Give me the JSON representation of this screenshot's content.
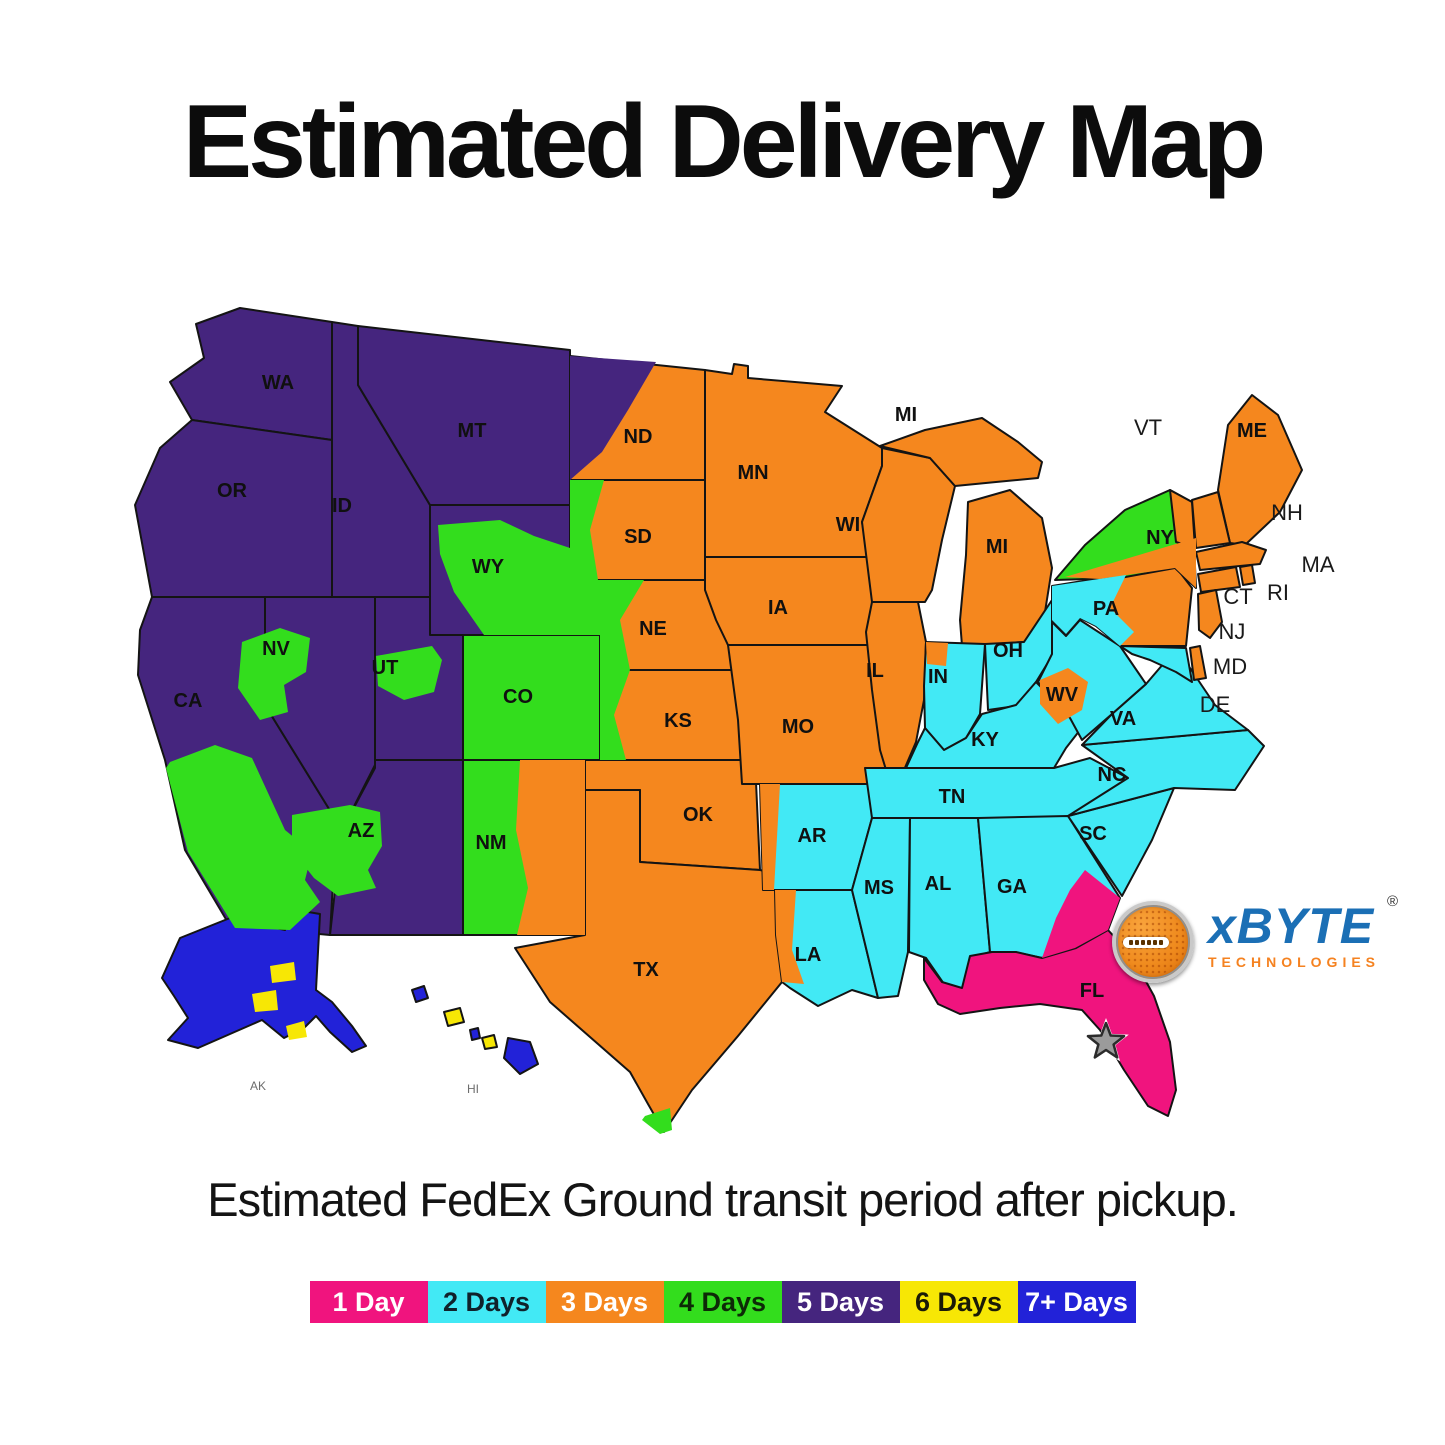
{
  "page": {
    "title": "Estimated Delivery Map",
    "subtitle": "Estimated FedEx Ground transit period after pickup."
  },
  "zones": {
    "1day": {
      "label": "1 Day",
      "color": "#F0147E",
      "text": "#FFFFFF"
    },
    "2day": {
      "label": "2 Days",
      "color": "#42E9F5",
      "text": "#10222b"
    },
    "3day": {
      "label": "3 Days",
      "color": "#F5871E",
      "text": "#FFFFFF"
    },
    "4day": {
      "label": "4 Days",
      "color": "#33DD1D",
      "text": "#0d2a07"
    },
    "5day": {
      "label": "5 Days",
      "color": "#45257E",
      "text": "#FFFFFF"
    },
    "6day": {
      "label": "6 Days",
      "color": "#F7E705",
      "text": "#1a1a07"
    },
    "7day": {
      "label": "7+ Days",
      "color": "#2222D8",
      "text": "#FFFFFF"
    }
  },
  "legend": {
    "items": [
      {
        "zone": "1day",
        "label": "1 Day"
      },
      {
        "zone": "2day",
        "label": "2 Days"
      },
      {
        "zone": "3day",
        "label": "3 Days"
      },
      {
        "zone": "4day",
        "label": "4 Days"
      },
      {
        "zone": "5day",
        "label": "5 Days"
      },
      {
        "zone": "6day",
        "label": "6 Days"
      },
      {
        "zone": "7day",
        "label": "7+ Days"
      }
    ]
  },
  "map": {
    "states": [
      {
        "id": "WA",
        "label": "WA",
        "zone": "5day"
      },
      {
        "id": "OR",
        "label": "OR",
        "zone": "5day"
      },
      {
        "id": "CA",
        "label": "CA",
        "zone": "5day"
      },
      {
        "id": "NV",
        "label": "NV",
        "zone": "5day"
      },
      {
        "id": "ID",
        "label": "ID",
        "zone": "5day"
      },
      {
        "id": "MT",
        "label": "MT",
        "zone": "5day"
      },
      {
        "id": "WY",
        "label": "WY",
        "zone": "5day"
      },
      {
        "id": "UT",
        "label": "UT",
        "zone": "5day"
      },
      {
        "id": "CO",
        "label": "CO",
        "zone": "4day"
      },
      {
        "id": "AZ",
        "label": "AZ",
        "zone": "5day"
      },
      {
        "id": "NM",
        "label": "NM",
        "zone": "4day"
      },
      {
        "id": "ND",
        "label": "ND",
        "zone": "3day"
      },
      {
        "id": "SD",
        "label": "SD",
        "zone": "3day"
      },
      {
        "id": "NE",
        "label": "NE",
        "zone": "3day"
      },
      {
        "id": "KS",
        "label": "KS",
        "zone": "3day"
      },
      {
        "id": "OK",
        "label": "OK",
        "zone": "3day"
      },
      {
        "id": "TX",
        "label": "TX",
        "zone": "3day"
      },
      {
        "id": "MN",
        "label": "MN",
        "zone": "3day"
      },
      {
        "id": "IA",
        "label": "IA",
        "zone": "3day"
      },
      {
        "id": "MO",
        "label": "MO",
        "zone": "3day"
      },
      {
        "id": "AR",
        "label": "AR",
        "zone": "2day"
      },
      {
        "id": "LA",
        "label": "LA",
        "zone": "2day"
      },
      {
        "id": "WI",
        "label": "WI",
        "zone": "3day"
      },
      {
        "id": "MI",
        "label": "MI",
        "zone": "3day"
      },
      {
        "id": "IL",
        "label": "IL",
        "zone": "3day"
      },
      {
        "id": "IN",
        "label": "IN",
        "zone": "2day"
      },
      {
        "id": "OH",
        "label": "OH",
        "zone": "2day"
      },
      {
        "id": "KY",
        "label": "KY",
        "zone": "2day"
      },
      {
        "id": "TN",
        "label": "TN",
        "zone": "2day"
      },
      {
        "id": "MS",
        "label": "MS",
        "zone": "2day"
      },
      {
        "id": "AL",
        "label": "AL",
        "zone": "2day"
      },
      {
        "id": "GA",
        "label": "GA",
        "zone": "2day"
      },
      {
        "id": "FL",
        "label": "FL",
        "zone": "1day"
      },
      {
        "id": "SC",
        "label": "SC",
        "zone": "2day"
      },
      {
        "id": "NC",
        "label": "NC",
        "zone": "2day"
      },
      {
        "id": "VA",
        "label": "VA",
        "zone": "2day"
      },
      {
        "id": "WV",
        "label": "WV",
        "zone": "2day"
      },
      {
        "id": "PA",
        "label": "PA",
        "zone": "3day"
      },
      {
        "id": "NY",
        "label": "NY",
        "zone": "4day"
      },
      {
        "id": "ME",
        "label": "ME",
        "zone": "3day"
      },
      {
        "id": "VT",
        "label": "VT",
        "zone": "3day"
      },
      {
        "id": "NH",
        "label": "NH",
        "zone": "3day"
      },
      {
        "id": "MA",
        "label": "MA",
        "zone": "3day"
      },
      {
        "id": "CT",
        "label": "CT",
        "zone": "3day"
      },
      {
        "id": "RI",
        "label": "RI",
        "zone": "3day"
      },
      {
        "id": "NJ",
        "label": "NJ",
        "zone": "3day"
      },
      {
        "id": "MD",
        "label": "MD",
        "zone": "2day"
      },
      {
        "id": "DE",
        "label": "DE",
        "zone": "3day"
      },
      {
        "id": "AK",
        "label": "AK",
        "zone": "7day"
      },
      {
        "id": "HI",
        "label": "HI",
        "zone": "7day"
      }
    ],
    "origin_marker": {
      "state": "FL",
      "symbol": "star"
    }
  },
  "logo": {
    "brand": "xBYTE",
    "tagline": "TECHNOLOGIES",
    "registered": "®"
  }
}
